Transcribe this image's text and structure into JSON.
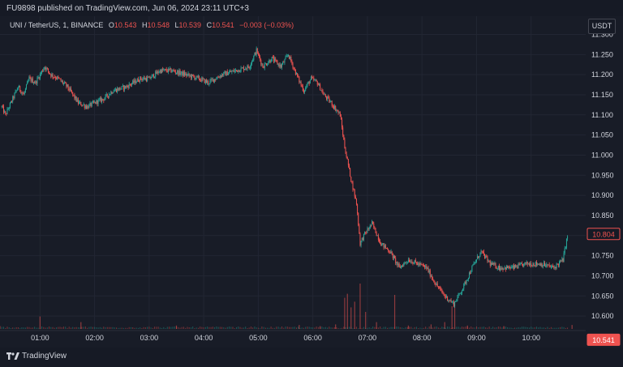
{
  "header": {
    "publisher_text": "FU9898 published on TradingView.com, Jun 06, 2024 23:11 UTC+3"
  },
  "legend": {
    "symbol_text": "UNI / TetherUS, 1, BINANCE",
    "open_key": "O",
    "open": "10.543",
    "high_key": "H",
    "high": "10.548",
    "low_key": "L",
    "low": "10.539",
    "close_key": "C",
    "close": "10.541",
    "change": "−0.003 (−0.03%)"
  },
  "currency_button": "USDT",
  "footer": {
    "brand": "TradingView"
  },
  "colors": {
    "up": "#26a69a",
    "down": "#ef5350",
    "background": "#181c27",
    "text": "#d1d4dc",
    "grid": "#222633"
  },
  "chart_data": {
    "type": "candlestick",
    "title": "UNI / TetherUS, 1, BINANCE",
    "y_ticks": [
      "10.600",
      "10.650",
      "10.700",
      "10.750",
      "10.800",
      "10.850",
      "10.900",
      "10.950",
      "11.000",
      "11.050",
      "11.100",
      "11.150",
      "11.200",
      "11.250",
      "11.300"
    ],
    "x_ticks": [
      "01:00",
      "02:00",
      "03:00",
      "04:00",
      "05:00",
      "06:00",
      "07:00",
      "08:00",
      "09:00",
      "10:00"
    ],
    "ylim": [
      10.57,
      11.305
    ],
    "xlim": [
      "00:16",
      "11:00"
    ],
    "grid": true,
    "price_labels": [
      {
        "value": "10.804",
        "style": "outline"
      },
      {
        "value": "10.541",
        "style": "filled"
      }
    ],
    "price_path": [
      [
        "00:18",
        11.12
      ],
      [
        "00:22",
        11.1
      ],
      [
        "00:30",
        11.14
      ],
      [
        "00:36",
        11.17
      ],
      [
        "00:42",
        11.15
      ],
      [
        "00:48",
        11.19
      ],
      [
        "00:55",
        11.18
      ],
      [
        "01:05",
        11.22
      ],
      [
        "01:12",
        11.2
      ],
      [
        "01:20",
        11.19
      ],
      [
        "01:30",
        11.17
      ],
      [
        "01:42",
        11.13
      ],
      [
        "01:52",
        11.12
      ],
      [
        "02:00",
        11.13
      ],
      [
        "02:10",
        11.14
      ],
      [
        "02:20",
        11.16
      ],
      [
        "02:35",
        11.17
      ],
      [
        "02:50",
        11.19
      ],
      [
        "03:00",
        11.19
      ],
      [
        "03:12",
        11.21
      ],
      [
        "03:25",
        11.21
      ],
      [
        "03:40",
        11.2
      ],
      [
        "03:55",
        11.19
      ],
      [
        "04:05",
        11.18
      ],
      [
        "04:20",
        11.2
      ],
      [
        "04:35",
        11.21
      ],
      [
        "04:50",
        11.22
      ],
      [
        "04:58",
        11.26
      ],
      [
        "05:05",
        11.22
      ],
      [
        "05:15",
        11.24
      ],
      [
        "05:25",
        11.22
      ],
      [
        "05:33",
        11.25
      ],
      [
        "05:42",
        11.2
      ],
      [
        "05:50",
        11.16
      ],
      [
        "05:58",
        11.19
      ],
      [
        "06:05",
        11.18
      ],
      [
        "06:12",
        11.15
      ],
      [
        "06:20",
        11.13
      ],
      [
        "06:30",
        11.1
      ],
      [
        "06:35",
        11.02
      ],
      [
        "06:42",
        10.94
      ],
      [
        "06:48",
        10.88
      ],
      [
        "06:52",
        10.78
      ],
      [
        "06:56",
        10.8
      ],
      [
        "07:05",
        10.83
      ],
      [
        "07:15",
        10.78
      ],
      [
        "07:25",
        10.76
      ],
      [
        "07:35",
        10.72
      ],
      [
        "07:45",
        10.74
      ],
      [
        "07:55",
        10.73
      ],
      [
        "08:05",
        10.72
      ],
      [
        "08:15",
        10.68
      ],
      [
        "08:25",
        10.65
      ],
      [
        "08:35",
        10.63
      ],
      [
        "08:45",
        10.67
      ],
      [
        "08:55",
        10.72
      ],
      [
        "09:05",
        10.76
      ],
      [
        "09:15",
        10.73
      ],
      [
        "09:25",
        10.72
      ],
      [
        "09:40",
        10.72
      ],
      [
        "09:55",
        10.73
      ],
      [
        "10:10",
        10.73
      ],
      [
        "10:25",
        10.72
      ],
      [
        "10:35",
        10.74
      ],
      [
        "10:40",
        10.8
      ]
    ],
    "volume_spikes": [
      [
        "00:16",
        0.05
      ],
      [
        "01:00",
        0.22
      ],
      [
        "01:45",
        0.12
      ],
      [
        "03:30",
        0.06
      ],
      [
        "05:45",
        0.07
      ],
      [
        "06:08",
        0.05
      ],
      [
        "06:25",
        0.08
      ],
      [
        "06:35",
        0.55
      ],
      [
        "06:38",
        0.62
      ],
      [
        "06:42",
        0.38
      ],
      [
        "06:46",
        0.48
      ],
      [
        "06:52",
        0.8
      ],
      [
        "06:58",
        0.3
      ],
      [
        "07:10",
        0.12
      ],
      [
        "07:30",
        0.6
      ],
      [
        "07:45",
        0.06
      ],
      [
        "08:10",
        0.08
      ],
      [
        "08:25",
        0.12
      ],
      [
        "08:33",
        0.4
      ],
      [
        "08:36",
        0.48
      ],
      [
        "08:50",
        0.06
      ],
      [
        "09:30",
        0.05
      ],
      [
        "10:45",
        0.07
      ]
    ]
  }
}
